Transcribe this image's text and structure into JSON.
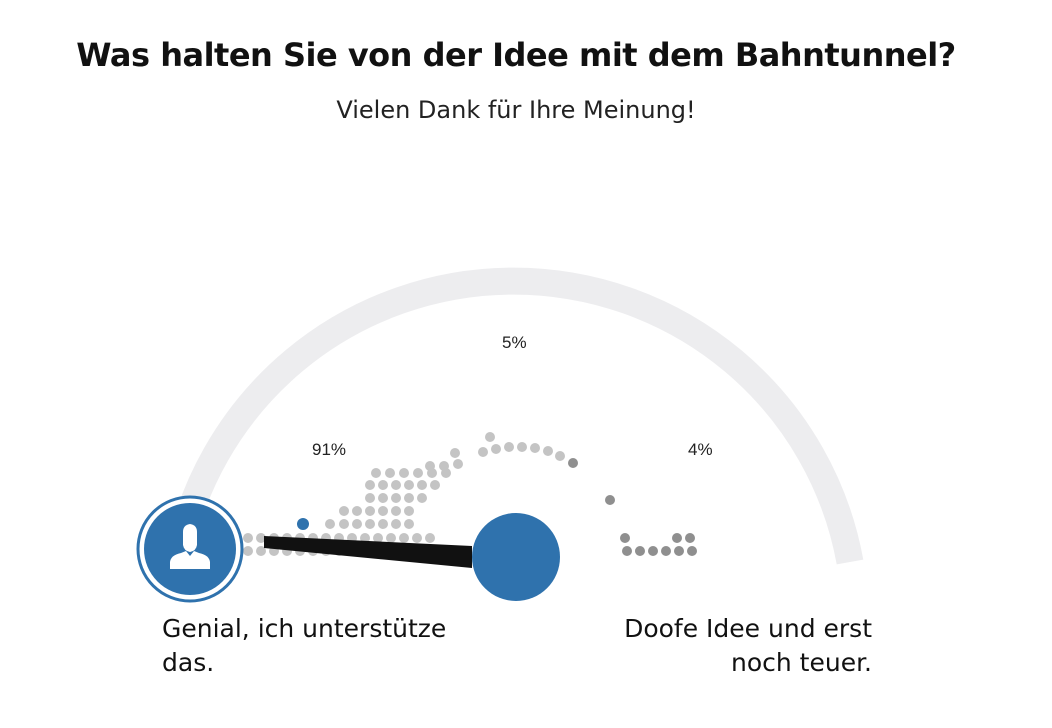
{
  "header": {
    "title": "Was halten Sie von der Idee mit dem Bahntunnel?",
    "subtitle": "Vielen Dank für Ihre Meinung!"
  },
  "results": {
    "left_percent": "91%",
    "middle_percent": "5%",
    "right_percent": "4%"
  },
  "scale": {
    "left_label": "Genial, ich unterstütze das.",
    "right_label": "Doofe Idee und erst noch teuer."
  },
  "icons": {
    "user_marker": "user-icon"
  },
  "colors": {
    "accent": "#2f72ad",
    "track": "#ededef",
    "dot_light": "#c4c4c4",
    "dot_dark": "#8f8f8f",
    "needle": "#111111"
  },
  "slider_value": 0.42
}
